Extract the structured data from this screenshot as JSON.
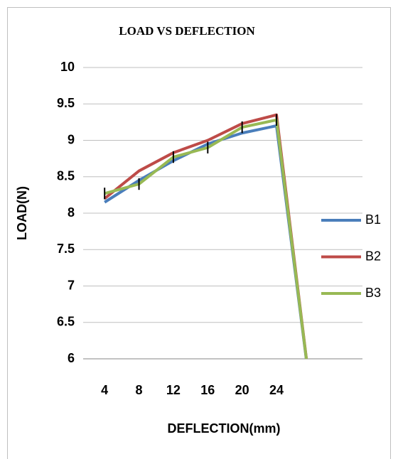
{
  "chart_data": {
    "type": "line",
    "title": "LOAD VS DEFLECTION",
    "x_label": "DEFLECTION(mm)",
    "y_label": "LOAD(N)",
    "categories": [
      "4",
      "8",
      "12",
      "16",
      "20",
      "24",
      null,
      null
    ],
    "series": [
      {
        "name": "B1",
        "color": "#4a7ebb",
        "values": [
          8.15,
          8.45,
          8.72,
          8.95,
          9.1,
          9.2,
          5.5,
          null
        ]
      },
      {
        "name": "B2",
        "color": "#be4b48",
        "values": [
          8.2,
          8.58,
          8.83,
          9.0,
          9.23,
          9.35,
          5.5,
          null
        ]
      },
      {
        "name": "B3",
        "color": "#98b954",
        "values": [
          8.27,
          8.4,
          8.77,
          8.9,
          9.18,
          9.28,
          5.5,
          null
        ],
        "errors": [
          0.08,
          0.08,
          0.08,
          0.08,
          0.08,
          0.08,
          null,
          null
        ]
      }
    ],
    "ylim": [
      6,
      10
    ],
    "yticks": [
      6,
      6.5,
      7,
      7.5,
      8,
      8.5,
      9,
      9.5,
      10
    ],
    "grid": true,
    "legend": "right"
  }
}
